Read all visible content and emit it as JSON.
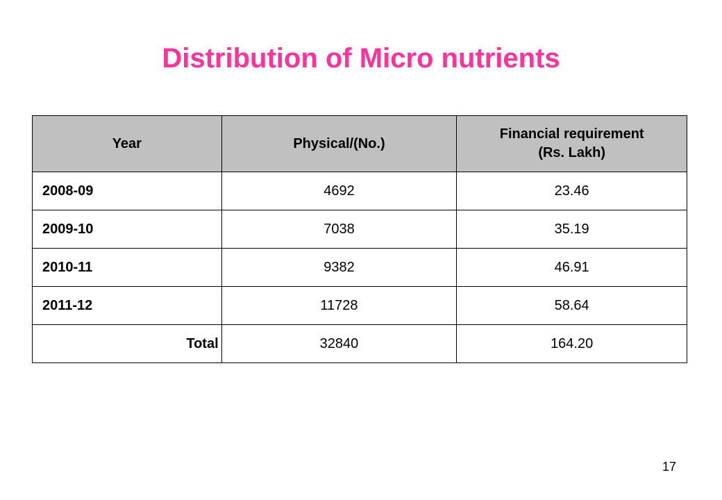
{
  "title": "Distribution of Micro nutrients",
  "table": {
    "headers": {
      "year": "Year",
      "physical": "Physical/(No.)",
      "financial_line1": "Financial requirement",
      "financial_line2": "(Rs. Lakh)"
    },
    "rows": [
      {
        "year": "2008-09",
        "physical": "4692",
        "financial": "23.46"
      },
      {
        "year": "2009-10",
        "physical": "7038",
        "financial": "35.19"
      },
      {
        "year": "2010-11",
        "physical": "9382",
        "financial": "46.91"
      },
      {
        "year": "2011-12",
        "physical": "11728",
        "financial": "58.64"
      }
    ],
    "total": {
      "label": "Total",
      "physical": "32840",
      "financial": "164.20"
    }
  },
  "page_number": "17",
  "colors": {
    "title": "#ff3399",
    "header_bg": "#c0c0c0",
    "border": "#000000"
  }
}
